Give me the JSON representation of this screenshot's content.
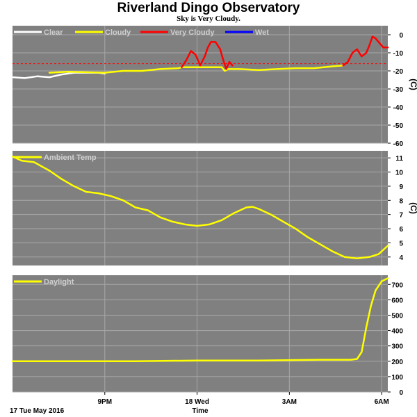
{
  "title": "Riverland Dingo Observatory",
  "subtitle": "Sky is Very Cloudy.",
  "footer": {
    "date": "17 Tue May 2016",
    "xlabel": "Time"
  },
  "x_ticks": [
    "9PM",
    "18 Wed",
    "3AM",
    "6AM"
  ],
  "colors": {
    "plot_bg": "#808080",
    "grid": "#a8a8a8",
    "clear": "#ffffff",
    "cloudy": "#ffff00",
    "very_cloudy": "#ff0000",
    "wet": "#0000ff",
    "threshold": "#ff0000"
  },
  "chart_data": [
    {
      "type": "line",
      "name": "sky",
      "x_unit": "hours since 18:00",
      "xlim": [
        0,
        12.2
      ],
      "ylim": [
        -60,
        5
      ],
      "yticks": [
        0,
        -10,
        -20,
        -30,
        -40,
        -50,
        -60
      ],
      "ylabel": "(C)",
      "threshold": -16,
      "legend": [
        "Clear",
        "Cloudy",
        "Very Cloudy",
        "Wet"
      ],
      "series": [
        {
          "name": "Clear",
          "points": [
            [
              0,
              -23.5
            ],
            [
              0.4,
              -24
            ],
            [
              0.8,
              -23
            ],
            [
              1.2,
              -23.5
            ],
            [
              1.6,
              -22
            ],
            [
              2.0,
              -21
            ],
            [
              2.4,
              -21
            ],
            [
              2.8,
              -21
            ],
            [
              3.0,
              -21.5
            ]
          ]
        },
        {
          "name": "Cloudy",
          "points": [
            [
              1.2,
              -21
            ],
            [
              1.8,
              -20.5
            ],
            [
              3.0,
              -21
            ],
            [
              3.6,
              -20
            ],
            [
              4.2,
              -20
            ],
            [
              4.8,
              -19
            ],
            [
              5.4,
              -18.5
            ],
            [
              5.5,
              -18
            ],
            [
              6.8,
              -18
            ],
            [
              6.9,
              -20
            ],
            [
              7.0,
              -19
            ],
            [
              7.4,
              -19
            ],
            [
              8.0,
              -19.5
            ],
            [
              8.6,
              -19
            ],
            [
              9.2,
              -18.5
            ],
            [
              9.8,
              -18.5
            ],
            [
              10.4,
              -17.5
            ],
            [
              10.75,
              -17
            ]
          ]
        },
        {
          "name": "Very Cloudy",
          "points": [
            [
              5.5,
              -18
            ],
            [
              5.65,
              -14
            ],
            [
              5.8,
              -9
            ],
            [
              5.95,
              -11
            ],
            [
              6.1,
              -17
            ],
            [
              6.25,
              -12
            ],
            [
              6.35,
              -7
            ],
            [
              6.45,
              -4
            ],
            [
              6.6,
              -4
            ],
            [
              6.75,
              -8
            ],
            [
              6.85,
              -14
            ],
            [
              6.95,
              -19
            ],
            [
              7.05,
              -15
            ],
            [
              7.15,
              -17
            ]
          ]
        },
        {
          "name": "Very Cloudy",
          "points": [
            [
              10.75,
              -17
            ],
            [
              10.9,
              -15
            ],
            [
              11.05,
              -10
            ],
            [
              11.2,
              -8
            ],
            [
              11.35,
              -12
            ],
            [
              11.5,
              -10
            ],
            [
              11.6,
              -6
            ],
            [
              11.7,
              -1
            ],
            [
              11.8,
              -2
            ],
            [
              11.9,
              -4
            ],
            [
              12.05,
              -7
            ],
            [
              12.2,
              -7
            ]
          ]
        }
      ]
    },
    {
      "type": "line",
      "name": "ambient",
      "x_unit": "hours since 18:00",
      "xlim": [
        0,
        12.2
      ],
      "ylim": [
        3.4,
        11.5
      ],
      "yticks": [
        11,
        10,
        9,
        8,
        7,
        6,
        5,
        4
      ],
      "ylabel": "(C)",
      "legend": [
        "Ambient Temp"
      ],
      "series": [
        {
          "name": "Ambient Temp",
          "points": [
            [
              0,
              11.1
            ],
            [
              0.3,
              10.8
            ],
            [
              0.7,
              10.7
            ],
            [
              1.2,
              10.1
            ],
            [
              1.6,
              9.5
            ],
            [
              2.0,
              9.0
            ],
            [
              2.4,
              8.6
            ],
            [
              2.8,
              8.5
            ],
            [
              3.2,
              8.3
            ],
            [
              3.6,
              8.0
            ],
            [
              4.0,
              7.5
            ],
            [
              4.4,
              7.3
            ],
            [
              4.8,
              6.8
            ],
            [
              5.2,
              6.5
            ],
            [
              5.6,
              6.3
            ],
            [
              6.0,
              6.2
            ],
            [
              6.4,
              6.3
            ],
            [
              6.8,
              6.6
            ],
            [
              7.2,
              7.1
            ],
            [
              7.6,
              7.5
            ],
            [
              7.8,
              7.55
            ],
            [
              8.0,
              7.4
            ],
            [
              8.4,
              7.0
            ],
            [
              8.8,
              6.5
            ],
            [
              9.2,
              6.0
            ],
            [
              9.6,
              5.4
            ],
            [
              10.0,
              4.9
            ],
            [
              10.4,
              4.4
            ],
            [
              10.8,
              4.0
            ],
            [
              11.2,
              3.9
            ],
            [
              11.6,
              4.0
            ],
            [
              11.9,
              4.2
            ],
            [
              12.2,
              4.8
            ]
          ]
        }
      ]
    },
    {
      "type": "line",
      "name": "daylight",
      "x_unit": "hours since 18:00",
      "xlim": [
        0,
        12.2
      ],
      "ylim": [
        0,
        760
      ],
      "yticks": [
        700,
        600,
        500,
        400,
        300,
        200,
        100,
        0
      ],
      "legend": [
        "Daylight"
      ],
      "series": [
        {
          "name": "Daylight",
          "points": [
            [
              0,
              200
            ],
            [
              2,
              200
            ],
            [
              4,
              200
            ],
            [
              6,
              205
            ],
            [
              8,
              205
            ],
            [
              10,
              210
            ],
            [
              11.0,
              210
            ],
            [
              11.2,
              215
            ],
            [
              11.35,
              260
            ],
            [
              11.5,
              420
            ],
            [
              11.65,
              560
            ],
            [
              11.8,
              660
            ],
            [
              12.0,
              720
            ],
            [
              12.2,
              740
            ]
          ]
        }
      ]
    }
  ]
}
